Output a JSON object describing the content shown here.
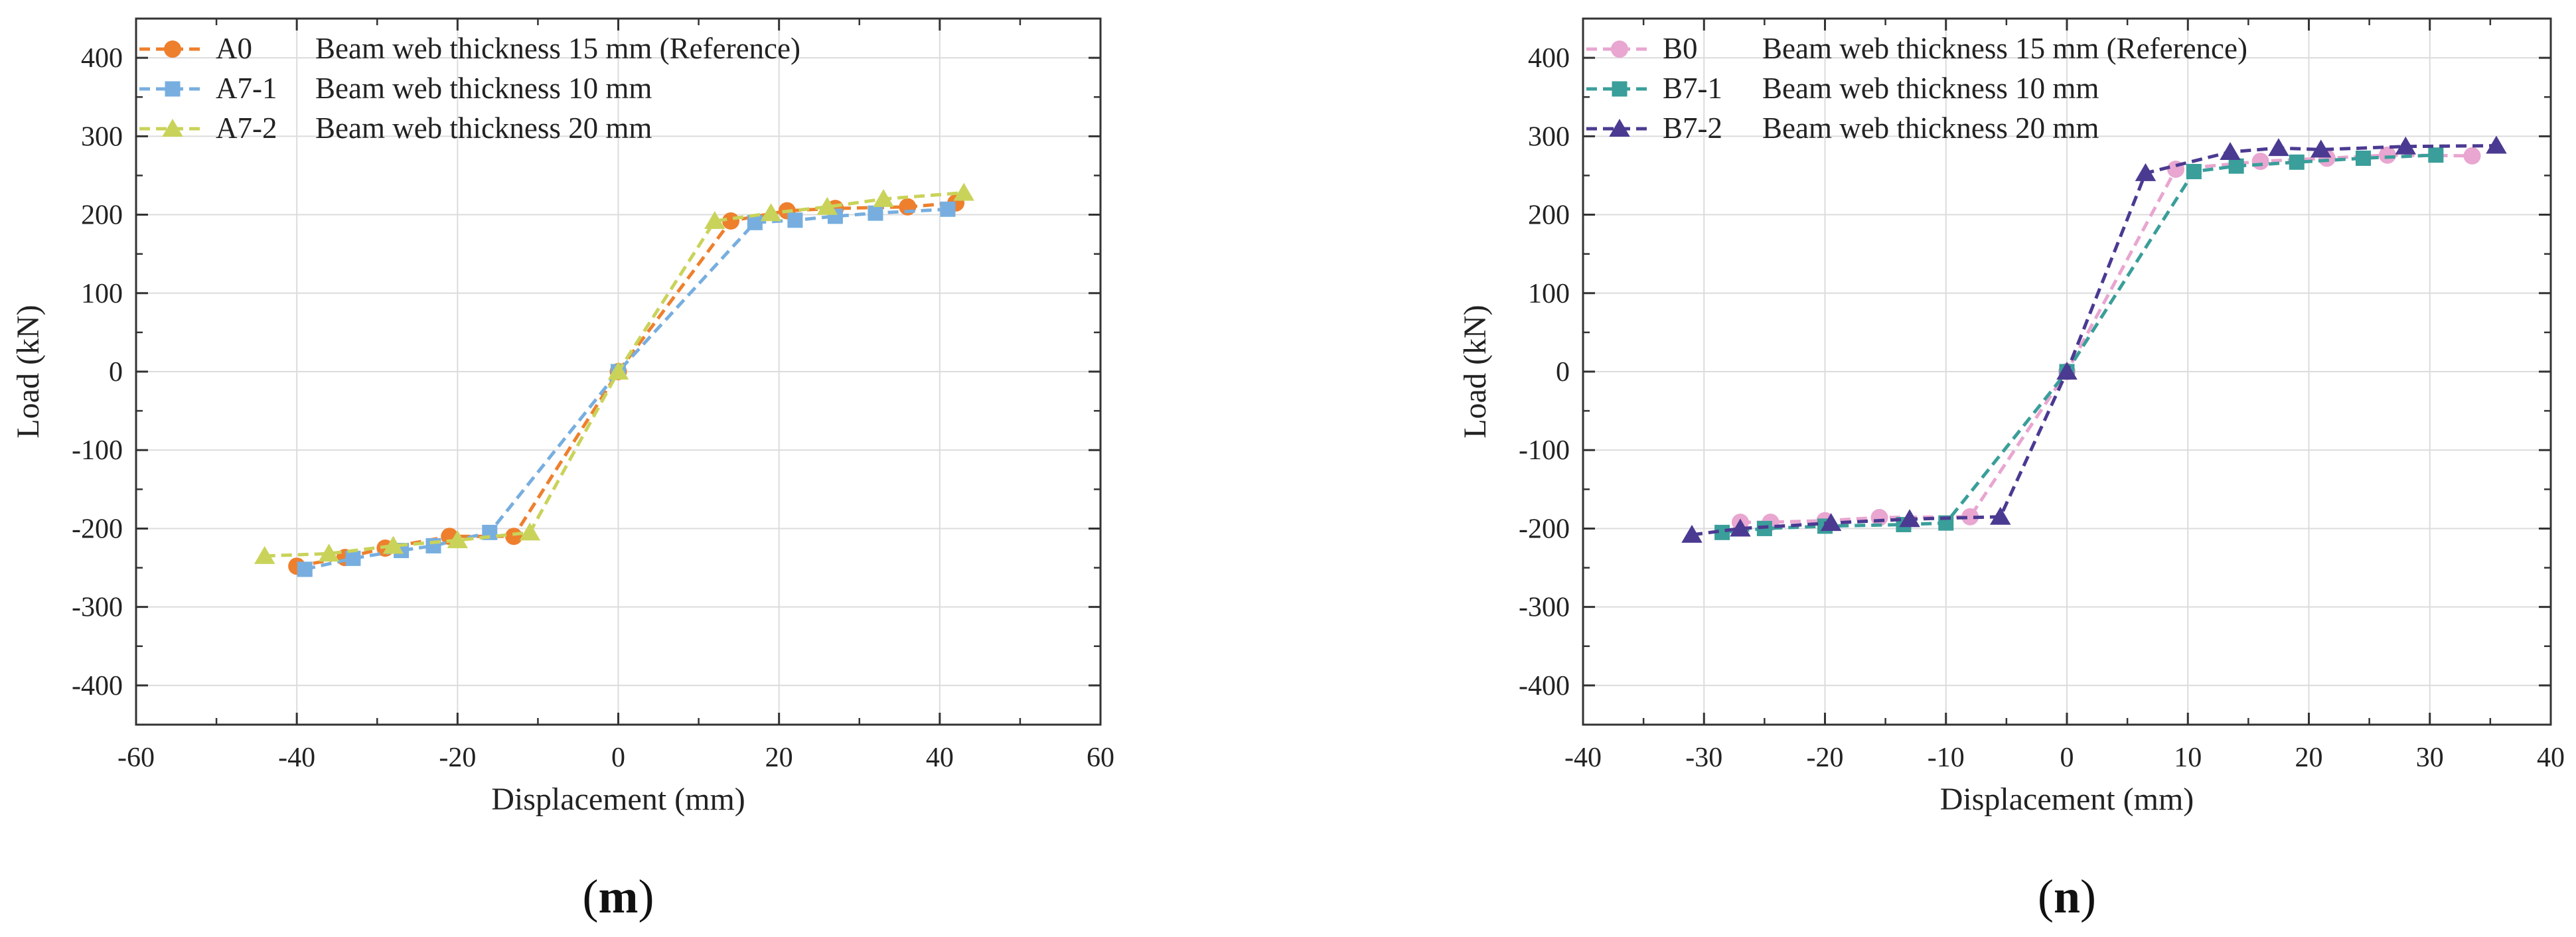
{
  "chart_data": [
    {
      "type": "line",
      "panel_label": {
        "open": "(",
        "letter": "m",
        "close": ")"
      },
      "xlabel": "Displacement (mm)",
      "ylabel": "Load (kN)",
      "xlim": [
        -60,
        60
      ],
      "ylim": [
        -450,
        450
      ],
      "xticks": [
        -60,
        -40,
        -20,
        0,
        20,
        40,
        60
      ],
      "yticks": [
        -400,
        -300,
        -200,
        -100,
        0,
        100,
        200,
        300,
        400
      ],
      "xticks_minor": [
        -50,
        -30,
        -10,
        10,
        30,
        50
      ],
      "yticks_minor": [
        -350,
        -250,
        -150,
        -50,
        50,
        150,
        250,
        350
      ],
      "grid": true,
      "legend_position": "top-left",
      "series": [
        {
          "name": "A0",
          "description": "Beam web thickness 15 mm (Reference)",
          "color": "#EE7F2D",
          "marker": "circle",
          "x": [
            -40,
            -34,
            -29,
            -21,
            -13,
            0,
            14,
            21,
            27,
            36,
            42
          ],
          "y": [
            -248,
            -237,
            -225,
            -210,
            -210,
            0,
            192,
            205,
            208,
            210,
            215
          ]
        },
        {
          "name": "A7-1",
          "description": "Beam web thickness 10 mm",
          "color": "#77AEDF",
          "marker": "square",
          "x": [
            -39,
            -33,
            -27,
            -23,
            -16,
            0,
            17,
            22,
            27,
            32,
            41
          ],
          "y": [
            -252,
            -238,
            -228,
            -222,
            -205,
            0,
            190,
            193,
            198,
            202,
            207
          ]
        },
        {
          "name": "A7-2",
          "description": "Beam web thickness 20 mm",
          "color": "#C9D35A",
          "marker": "triangle",
          "x": [
            -44,
            -36,
            -28,
            -20,
            -11,
            0,
            12,
            19,
            26,
            33,
            43
          ],
          "y": [
            -235,
            -232,
            -222,
            -215,
            -205,
            0,
            192,
            202,
            210,
            220,
            228
          ]
        }
      ]
    },
    {
      "type": "line",
      "panel_label": {
        "open": "(",
        "letter": "n",
        "close": ")"
      },
      "xlabel": "Displacement (mm)",
      "ylabel": "Load (kN)",
      "xlim": [
        -40,
        40
      ],
      "ylim": [
        -450,
        450
      ],
      "xticks": [
        -40,
        -30,
        -20,
        -10,
        0,
        10,
        20,
        30,
        40
      ],
      "yticks": [
        -400,
        -300,
        -200,
        -100,
        0,
        100,
        200,
        300,
        400
      ],
      "xticks_minor": [
        -35,
        -25,
        -15,
        -5,
        5,
        15,
        25,
        35
      ],
      "yticks_minor": [
        -350,
        -250,
        -150,
        -50,
        50,
        150,
        250,
        350
      ],
      "grid": true,
      "legend_position": "top-left",
      "series": [
        {
          "name": "B0",
          "description": "Beam web thickness 15 mm (Reference)",
          "color": "#E8A6D0",
          "marker": "circle",
          "x": [
            -27,
            -24.5,
            -20,
            -15.5,
            -8,
            0,
            9,
            16,
            21.5,
            26.5,
            33.5
          ],
          "y": [
            -192,
            -192,
            -190,
            -186,
            -185,
            0,
            258,
            268,
            272,
            276,
            275
          ]
        },
        {
          "name": "B7-1",
          "description": "Beam web thickness 10 mm",
          "color": "#3A9E9A",
          "marker": "square",
          "x": [
            -28.5,
            -25,
            -20,
            -13.5,
            -10,
            0,
            10.5,
            14,
            19,
            24.5,
            30.5
          ],
          "y": [
            -205,
            -200,
            -197,
            -195,
            -193,
            0,
            255,
            262,
            267,
            272,
            276
          ]
        },
        {
          "name": "B7-2",
          "description": "Beam web thickness 20 mm",
          "color": "#4B3A91",
          "marker": "triangle",
          "x": [
            -31,
            -27,
            -19.5,
            -13,
            -5.5,
            0,
            6.5,
            13.5,
            17.5,
            21,
            28,
            35.5
          ],
          "y": [
            -208,
            -200,
            -193,
            -188,
            -185,
            0,
            253,
            280,
            285,
            283,
            287,
            288
          ]
        }
      ]
    }
  ]
}
